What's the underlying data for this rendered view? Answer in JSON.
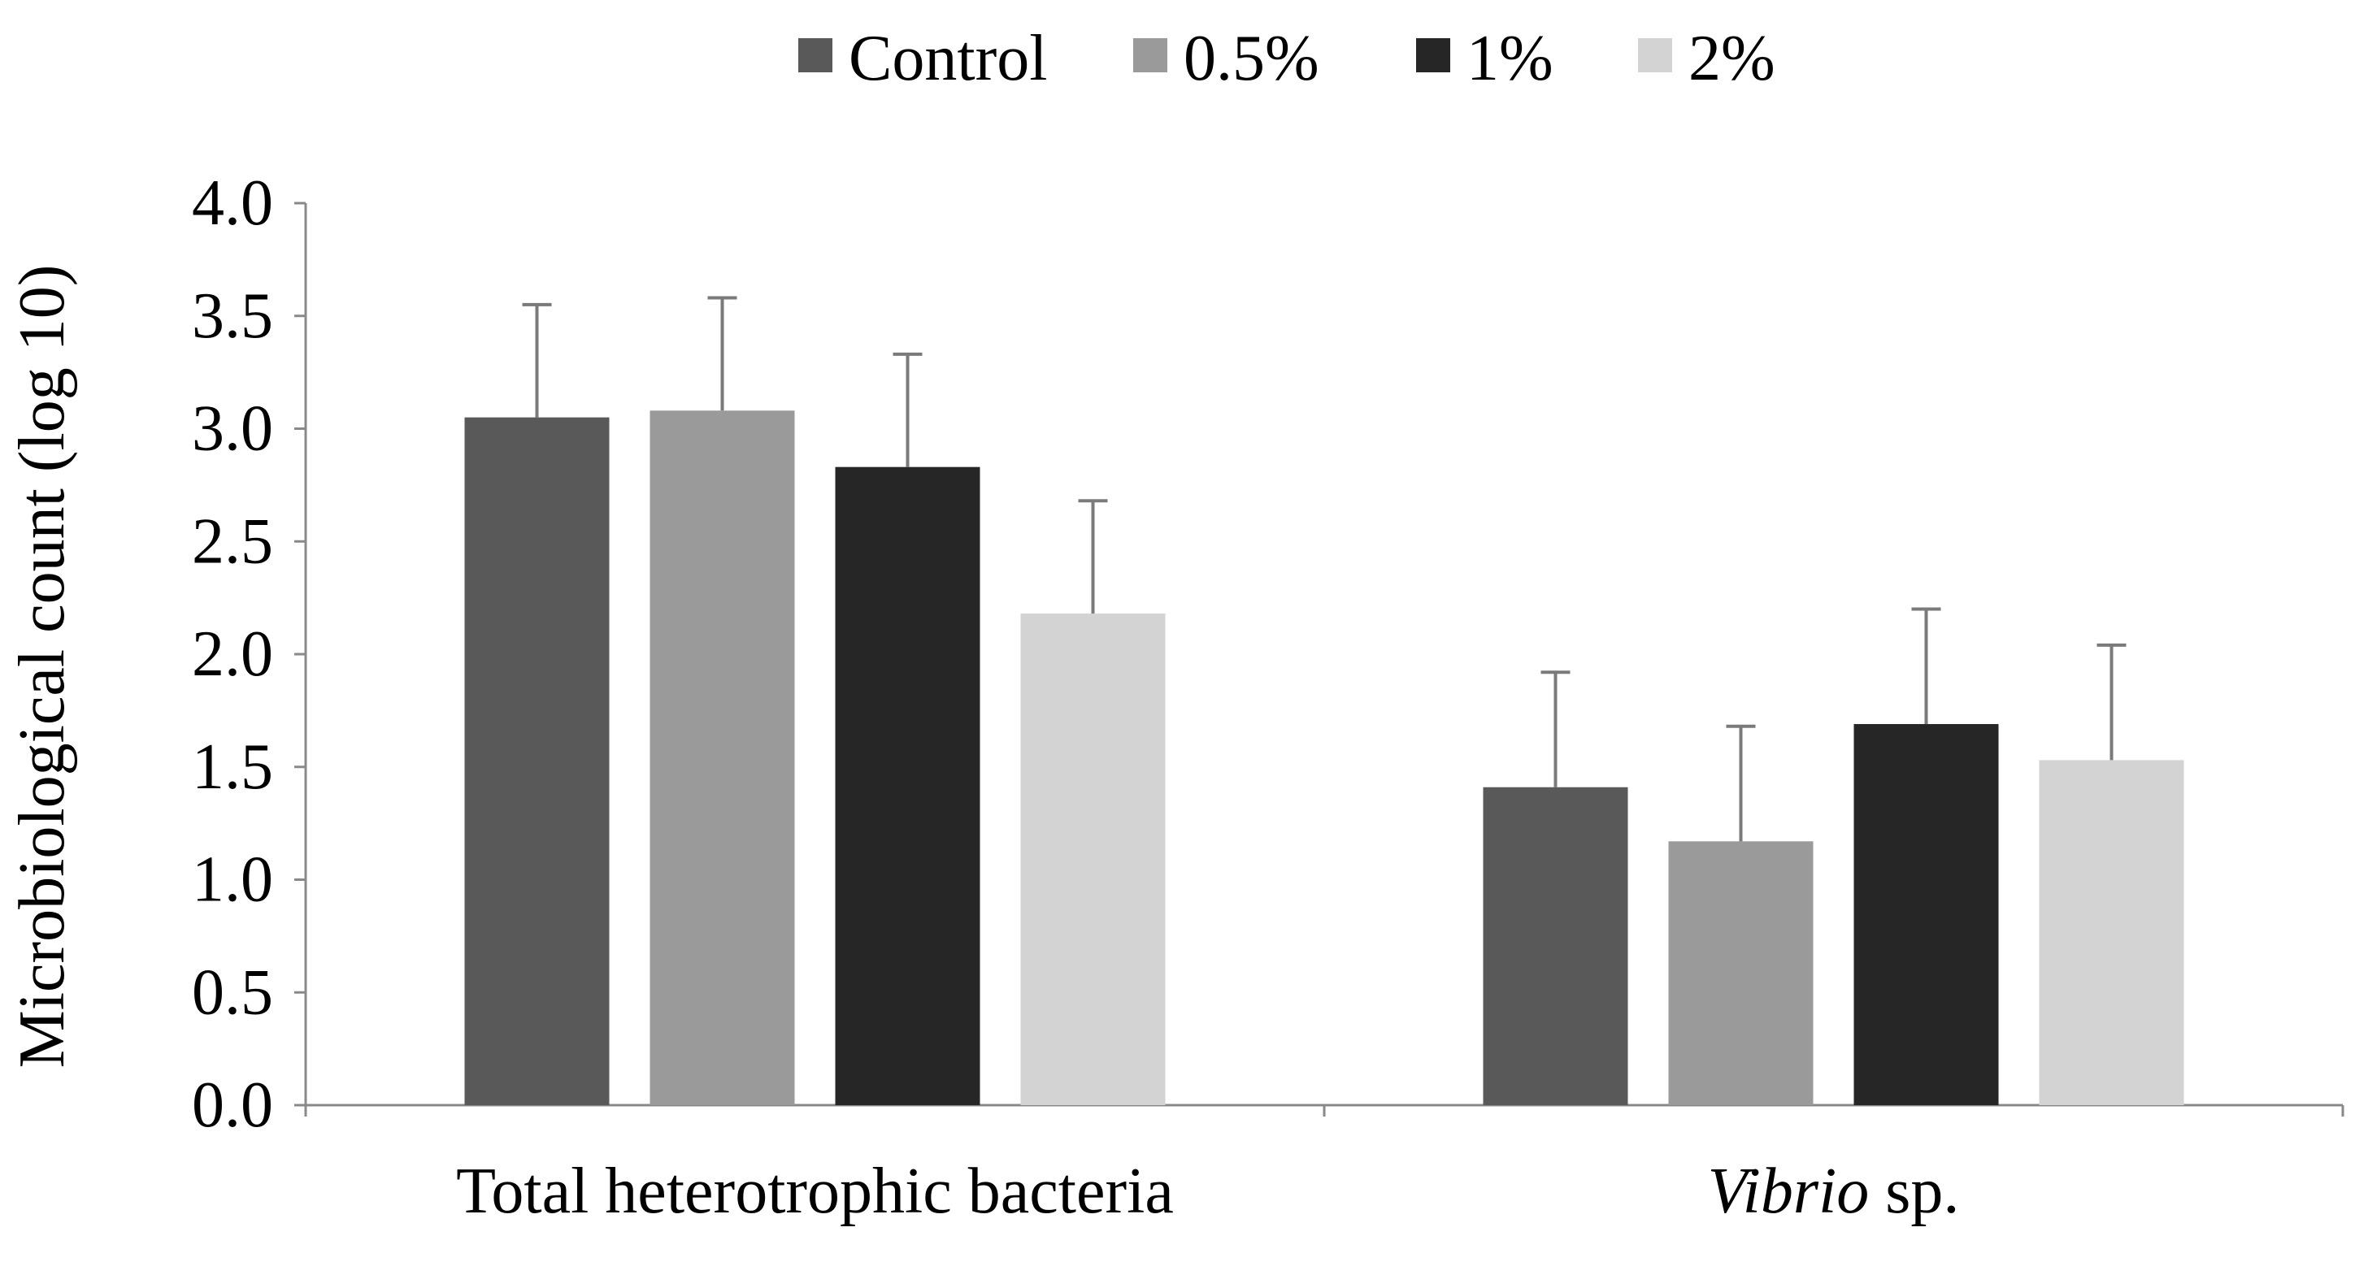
{
  "chart_data": {
    "type": "bar",
    "title": "",
    "xlabel": "",
    "ylabel": "Microbiological count (log 10)",
    "ylim": [
      0,
      4.0
    ],
    "yticks": [
      "0.0",
      "0.5",
      "1.0",
      "1.5",
      "2.0",
      "2.5",
      "3.0",
      "3.5",
      "4.0"
    ],
    "grid": false,
    "legend_position": "top-center",
    "categories": [
      {
        "italic": "",
        "plain": "Total heterotrophic bacteria"
      },
      {
        "italic": "Vibrio",
        "plain": " sp."
      }
    ],
    "series": [
      {
        "name": "Control",
        "color": "#595959",
        "values": [
          3.05,
          1.41
        ],
        "errors": [
          0.5,
          0.51
        ]
      },
      {
        "name": "0.5%",
        "color": "#9a9a9a",
        "values": [
          3.08,
          1.17
        ],
        "errors": [
          0.5,
          0.51
        ]
      },
      {
        "name": "1%",
        "color": "#262626",
        "values": [
          2.83,
          1.69
        ],
        "errors": [
          0.5,
          0.51
        ]
      },
      {
        "name": "2%",
        "color": "#d3d3d3",
        "values": [
          2.18,
          1.53
        ],
        "errors": [
          0.5,
          0.51
        ]
      }
    ]
  }
}
